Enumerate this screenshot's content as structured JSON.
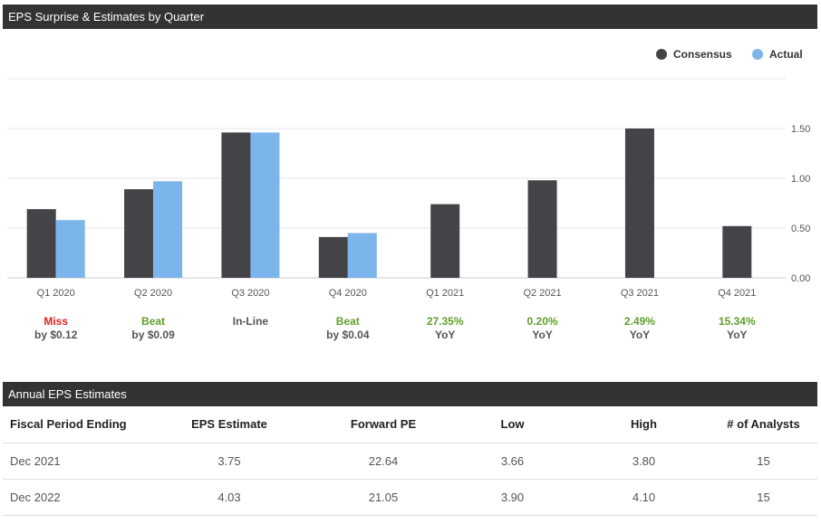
{
  "chart_title": "EPS Surprise & Estimates by Quarter",
  "chart_data": {
    "type": "bar",
    "title": "EPS Surprise & Estimates by Quarter",
    "categories": [
      "Q1 2020",
      "Q2 2020",
      "Q3 2020",
      "Q4 2020",
      "Q1 2021",
      "Q2 2021",
      "Q3 2021",
      "Q4 2021"
    ],
    "series": [
      {
        "name": "Consensus",
        "color": "#434348",
        "values": [
          0.69,
          0.89,
          1.46,
          0.41,
          0.74,
          0.98,
          1.5,
          0.52
        ]
      },
      {
        "name": "Actual",
        "color": "#7cb5ec",
        "values": [
          0.58,
          0.97,
          1.46,
          0.45,
          null,
          null,
          null,
          null
        ]
      }
    ],
    "ylim": [
      0,
      2.0
    ],
    "yticks": [
      "0.00",
      "0.50",
      "1.00",
      "1.50"
    ],
    "legend_position": "top-right",
    "results": [
      {
        "top": "Miss",
        "bottom": "by $0.12",
        "color": "#e02020"
      },
      {
        "top": "Beat",
        "bottom": "by $0.09",
        "color": "#5f9e2c"
      },
      {
        "top": "In-Line",
        "bottom": "",
        "color": "#555555"
      },
      {
        "top": "Beat",
        "bottom": "by $0.04",
        "color": "#5f9e2c"
      },
      {
        "top": "27.35%",
        "bottom": "YoY",
        "color": "#5f9e2c"
      },
      {
        "top": "0.20%",
        "bottom": "YoY",
        "color": "#5f9e2c"
      },
      {
        "top": "2.49%",
        "bottom": "YoY",
        "color": "#5f9e2c"
      },
      {
        "top": "15.34%",
        "bottom": "YoY",
        "color": "#5f9e2c"
      }
    ]
  },
  "annual": {
    "title": "Annual EPS Estimates",
    "columns": [
      "Fiscal Period Ending",
      "EPS Estimate",
      "Forward PE",
      "Low",
      "High",
      "# of Analysts"
    ],
    "rows": [
      [
        "Dec 2021",
        "3.75",
        "22.64",
        "3.66",
        "3.80",
        "15"
      ],
      [
        "Dec 2022",
        "4.03",
        "21.05",
        "3.90",
        "4.10",
        "15"
      ]
    ]
  }
}
